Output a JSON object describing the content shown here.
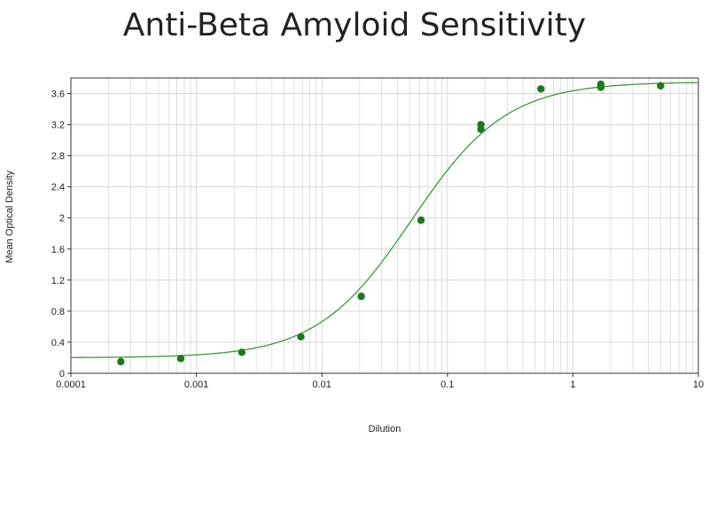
{
  "chart_data": {
    "type": "scatter",
    "title": "Anti-Beta Amyloid Sensitivity",
    "xlabel": "Dilution",
    "ylabel": "Mean Optical Density",
    "xscale": "log",
    "xlim": [
      0.0001,
      10
    ],
    "ylim": [
      0,
      3.8
    ],
    "grid": true,
    "legend": "none",
    "x_ticks": [
      "0.0001",
      "0.001",
      "0.01",
      "0.1",
      "1",
      "10"
    ],
    "y_ticks": [
      "0",
      "0.4",
      "0.8",
      "1.2",
      "1.6",
      "2",
      "2.4",
      "2.8",
      "3.2",
      "3.6"
    ],
    "y_tick_values": [
      0,
      0.4,
      0.8,
      1.2,
      1.6,
      2,
      2.4,
      2.8,
      3.2,
      3.6
    ],
    "x_tick_values": [
      0.0001,
      0.001,
      0.01,
      0.1,
      1,
      10
    ],
    "series": [
      {
        "points": [
          {
            "x": 0.00025,
            "y": 0.15
          },
          {
            "x": 0.00075,
            "y": 0.19
          },
          {
            "x": 0.0023,
            "y": 0.27
          },
          {
            "x": 0.0068,
            "y": 0.47
          },
          {
            "x": 0.0206,
            "y": 0.99
          },
          {
            "x": 0.0617,
            "y": 1.97
          },
          {
            "x": 0.185,
            "y": 3.14
          },
          {
            "x": 0.185,
            "y": 3.2
          },
          {
            "x": 0.556,
            "y": 3.66
          },
          {
            "x": 1.67,
            "y": 3.68
          },
          {
            "x": 1.67,
            "y": 3.72
          },
          {
            "x": 5.0,
            "y": 3.7
          }
        ]
      }
    ],
    "fit_curve": {
      "type": "4PL",
      "bottom": 0.2,
      "top": 3.75,
      "ec50": 0.052,
      "hill": 1.15
    },
    "colors": {
      "point": "#1a7a1a",
      "curve": "#3a9a3a",
      "grid": "#d8d8d8",
      "axis": "#333333"
    }
  }
}
